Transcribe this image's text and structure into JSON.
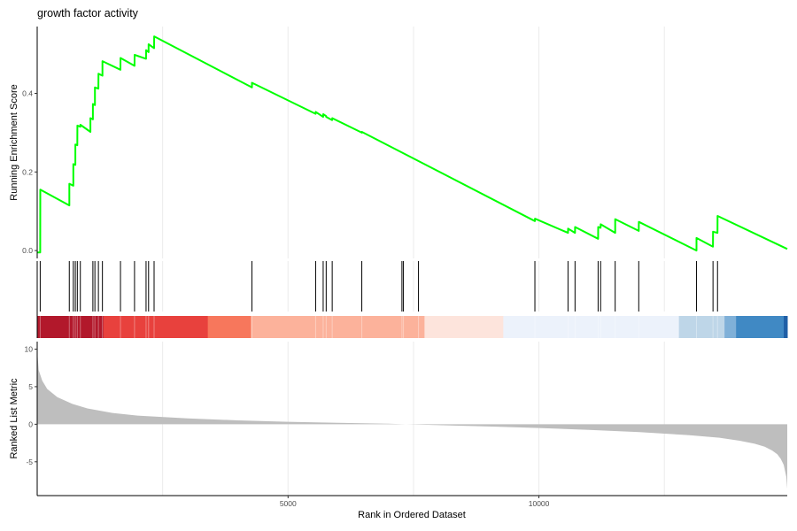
{
  "chart_data": {
    "type": "line",
    "title": "growth factor activity",
    "xlabel": "Rank in Ordered Dataset",
    "xlim": [
      0,
      14950
    ],
    "x_ticks": [
      5000,
      10000
    ],
    "x_tick_labels": [
      "5000",
      "10000"
    ],
    "grid": true,
    "panels": {
      "running_score": {
        "ylabel": "Running Enrichment Score",
        "ylim": [
          -0.02,
          0.57
        ],
        "y_ticks": [
          0.0,
          0.2,
          0.4
        ],
        "y_tick_labels": [
          "0.0",
          "0.2",
          "0.4"
        ],
        "line_color": "#00ff00",
        "x": [
          0,
          60,
          61,
          640,
          641,
          720,
          721,
          760,
          761,
          800,
          801,
          860,
          861,
          1060,
          1061,
          1110,
          1111,
          1150,
          1151,
          1220,
          1221,
          1300,
          1301,
          1660,
          1661,
          1940,
          1941,
          2170,
          2171,
          2220,
          2221,
          2330,
          2331,
          4280,
          4281,
          5550,
          5551,
          5700,
          5701,
          5760,
          5761,
          5880,
          5881,
          6470,
          6471,
          9920,
          9921,
          10580,
          10581,
          10720,
          10721,
          11180,
          11181,
          11230,
          11231,
          11520,
          11521,
          11990,
          11991,
          13140,
          13141,
          13470,
          13471,
          13560,
          13561,
          14950
        ],
        "y": [
          -0.005,
          -0.005,
          0.155,
          0.115,
          0.17,
          0.165,
          0.22,
          0.218,
          0.27,
          0.268,
          0.318,
          0.315,
          0.32,
          0.302,
          0.337,
          0.334,
          0.373,
          0.37,
          0.415,
          0.412,
          0.45,
          0.445,
          0.482,
          0.46,
          0.49,
          0.47,
          0.498,
          0.488,
          0.51,
          0.505,
          0.525,
          0.515,
          0.545,
          0.415,
          0.427,
          0.348,
          0.353,
          0.34,
          0.347,
          0.342,
          0.34,
          0.332,
          0.337,
          0.3,
          0.302,
          0.075,
          0.081,
          0.045,
          0.056,
          0.045,
          0.06,
          0.03,
          0.06,
          0.058,
          0.067,
          0.045,
          0.08,
          0.05,
          0.073,
          0.0,
          0.032,
          0.01,
          0.048,
          0.045,
          0.088,
          0.004
        ]
      },
      "hits": {
        "positions": [
          60,
          640,
          720,
          760,
          800,
          860,
          1110,
          1150,
          1220,
          1300,
          1660,
          1940,
          2170,
          2220,
          2330,
          4280,
          5550,
          5700,
          5760,
          5880,
          6470,
          7270,
          7300,
          7600,
          9920,
          10580,
          10720,
          11180,
          11230,
          11520,
          11990,
          13140,
          13470,
          13560
        ]
      },
      "color_bar": {
        "segments": [
          {
            "from": 0,
            "to": 1320,
            "color": "#b2182b"
          },
          {
            "from": 1320,
            "to": 3400,
            "color": "#e8413d"
          },
          {
            "from": 3400,
            "to": 4260,
            "color": "#f7775c"
          },
          {
            "from": 4260,
            "to": 7720,
            "color": "#fcb29b"
          },
          {
            "from": 7720,
            "to": 9290,
            "color": "#fde4dc"
          },
          {
            "from": 9290,
            "to": 12790,
            "color": "#ecf2fb"
          },
          {
            "from": 12790,
            "to": 13700,
            "color": "#bed6e8"
          },
          {
            "from": 13700,
            "to": 13930,
            "color": "#7fb0d8"
          },
          {
            "from": 13930,
            "to": 14880,
            "color": "#4089c4"
          },
          {
            "from": 14880,
            "to": 14950,
            "color": "#1f5fa6"
          }
        ]
      },
      "ranked_metric": {
        "ylabel": "Ranked List Metric",
        "ylim": [
          -9.5,
          11
        ],
        "y_ticks": [
          10,
          5,
          0,
          -5
        ],
        "y_tick_labels": [
          "10",
          "5",
          "0",
          "-5"
        ],
        "fill_color": "#bebebe",
        "x": [
          0,
          30,
          100,
          200,
          400,
          700,
          1000,
          1500,
          2000,
          3000,
          4000,
          5000,
          6000,
          7000,
          7350,
          8000,
          9000,
          10000,
          11000,
          12000,
          13000,
          13600,
          14000,
          14300,
          14500,
          14650,
          14750,
          14820,
          14880,
          14930,
          14950
        ],
        "y": [
          9.8,
          7.2,
          5.8,
          4.7,
          3.6,
          2.7,
          2.1,
          1.5,
          1.15,
          0.78,
          0.52,
          0.33,
          0.2,
          0.08,
          0.0,
          -0.12,
          -0.3,
          -0.5,
          -0.75,
          -1.05,
          -1.45,
          -1.8,
          -2.2,
          -2.6,
          -3.0,
          -3.5,
          -4.0,
          -4.6,
          -5.4,
          -7.0,
          -8.6
        ]
      }
    }
  }
}
